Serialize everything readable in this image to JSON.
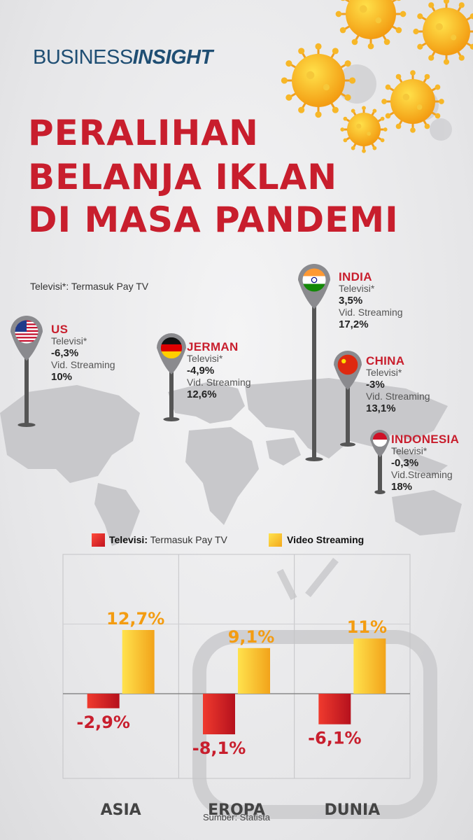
{
  "brand": {
    "part1": "BUSINESS",
    "part2": "INSIGHT"
  },
  "title": {
    "line1": "PERALIHAN",
    "line2": "BELANJA IKLAN",
    "line3": "DI MASA PANDEMI"
  },
  "footnote": "Televisi*: Termasuk Pay TV",
  "countries": [
    {
      "name": "US",
      "tv_label": "Televisi*",
      "tv_value": "-6,3%",
      "vs_label": "Vid. Streaming",
      "vs_value": "10%",
      "flag": "us-flag-icon"
    },
    {
      "name": "JERMAN",
      "tv_label": "Televisi*",
      "tv_value": "-4,9%",
      "vs_label": "Vid. Streaming",
      "vs_value": "12,6%",
      "flag": "germany-flag-icon"
    },
    {
      "name": "INDIA",
      "tv_label": "Televisi*",
      "tv_value": "3,5%",
      "vs_label": "Vid. Streaming",
      "vs_value": "17,2%",
      "flag": "india-flag-icon"
    },
    {
      "name": "CHINA",
      "tv_label": "Televisi*",
      "tv_value": "-3%",
      "vs_label": "Vid. Streaming",
      "vs_value": "13,1%",
      "flag": "china-flag-icon"
    },
    {
      "name": "INDONESIA",
      "tv_label": "Televisi*",
      "tv_value": "-0,3%",
      "vs_label": "Vid.Streaming",
      "vs_value": "18%",
      "flag": "indonesia-flag-icon"
    }
  ],
  "legend": {
    "tv_bold": "Televisi:",
    "tv_rest": " Termasuk Pay TV",
    "vs": "Video Streaming"
  },
  "colors": {
    "title_red": "#c81e2d",
    "tv_red": "#d9222e",
    "vs_yellow": "#f7b21e",
    "brand_blue": "#1f4e73"
  },
  "chart_data": {
    "type": "bar",
    "categories": [
      "ASIA",
      "EROPA",
      "DUNIA"
    ],
    "series": [
      {
        "name": "Televisi",
        "values": [
          -2.9,
          -8.1,
          -6.1
        ],
        "labels": [
          "-2,9%",
          "-8,1%",
          "-6,1%"
        ]
      },
      {
        "name": "Video Streaming",
        "values": [
          12.7,
          9.1,
          11
        ],
        "labels": [
          "12,7%",
          "9,1%",
          "11%"
        ]
      }
    ]
  },
  "source": "Sumber: Statista"
}
